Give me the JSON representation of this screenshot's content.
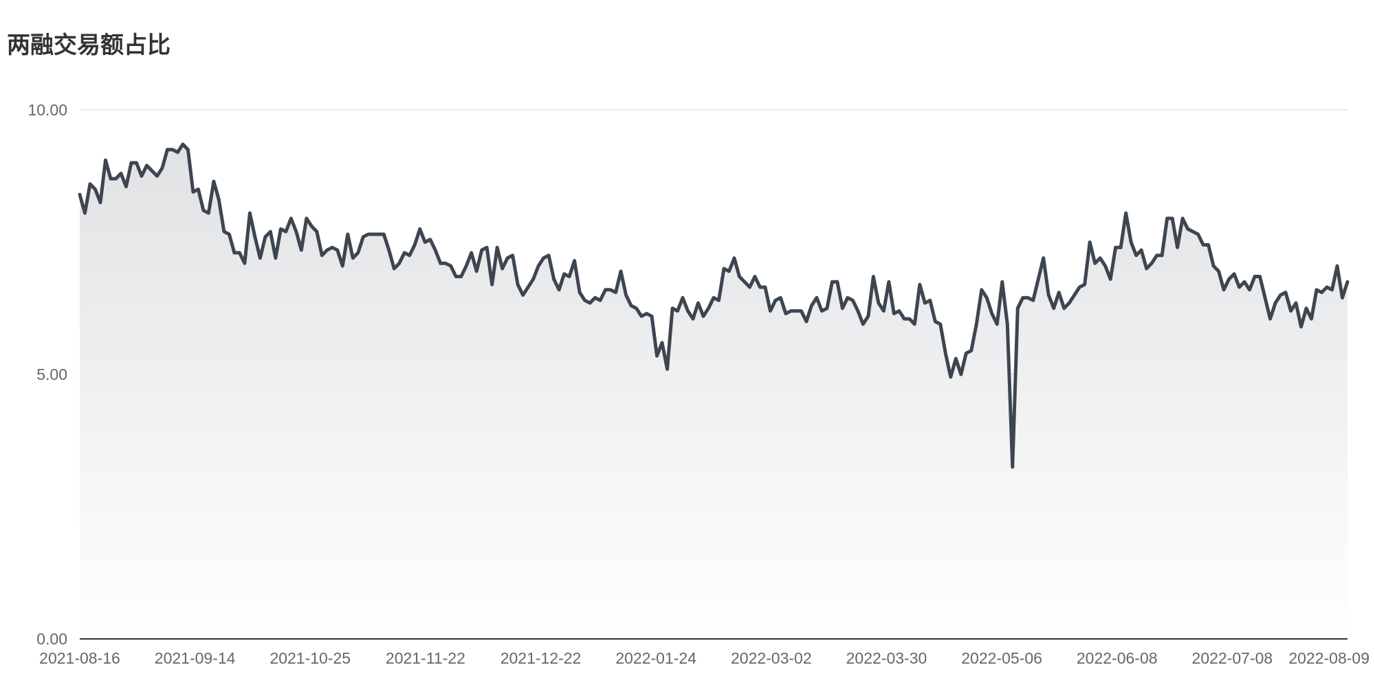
{
  "chart_data": {
    "type": "area",
    "title": "两融交易额占比",
    "ylim": [
      0,
      10
    ],
    "yticks": [
      "10.00",
      "5.00",
      "0.00"
    ],
    "xticks": [
      "2021-08-16",
      "2021-09-14",
      "2021-10-25",
      "2021-11-22",
      "2021-12-22",
      "2022-01-24",
      "2022-03-02",
      "2022-03-30",
      "2022-05-06",
      "2022-06-08",
      "2022-07-08",
      "2022-08-09"
    ],
    "grid": true,
    "legend": "none",
    "line_color": "#3d4650",
    "fill_color_top": "#e1e2e4",
    "fill_color_bottom": "#ffffff",
    "series": [
      {
        "values": [
          8.4,
          8.05,
          8.6,
          8.5,
          8.25,
          9.05,
          8.7,
          8.7,
          8.8,
          8.55,
          9.0,
          9.0,
          8.75,
          8.95,
          8.85,
          8.75,
          8.9,
          9.25,
          9.25,
          9.2,
          9.35,
          9.25,
          8.45,
          8.5,
          8.1,
          8.05,
          8.65,
          8.3,
          7.7,
          7.65,
          7.3,
          7.3,
          7.1,
          8.05,
          7.6,
          7.2,
          7.6,
          7.7,
          7.2,
          7.75,
          7.7,
          7.95,
          7.7,
          7.35,
          7.95,
          7.8,
          7.7,
          7.25,
          7.35,
          7.4,
          7.35,
          7.05,
          7.65,
          7.2,
          7.3,
          7.6,
          7.65,
          7.65,
          7.65,
          7.65,
          7.35,
          7.0,
          7.1,
          7.3,
          7.25,
          7.45,
          7.75,
          7.5,
          7.55,
          7.35,
          7.1,
          7.1,
          7.05,
          6.85,
          6.85,
          7.05,
          7.3,
          6.95,
          7.35,
          7.4,
          6.7,
          7.4,
          7.0,
          7.2,
          7.25,
          6.7,
          6.5,
          6.65,
          6.8,
          7.05,
          7.2,
          7.25,
          6.8,
          6.6,
          6.9,
          6.85,
          7.15,
          6.55,
          6.4,
          6.35,
          6.45,
          6.4,
          6.6,
          6.6,
          6.55,
          6.95,
          6.5,
          6.3,
          6.25,
          6.1,
          6.15,
          6.1,
          5.35,
          5.6,
          5.1,
          6.25,
          6.2,
          6.45,
          6.2,
          6.05,
          6.35,
          6.1,
          6.25,
          6.45,
          6.4,
          7.0,
          6.95,
          7.2,
          6.85,
          6.75,
          6.65,
          6.85,
          6.65,
          6.65,
          6.2,
          6.4,
          6.45,
          6.15,
          6.2,
          6.2,
          6.2,
          6.0,
          6.3,
          6.45,
          6.2,
          6.25,
          6.75,
          6.75,
          6.25,
          6.45,
          6.4,
          6.2,
          5.95,
          6.1,
          6.85,
          6.35,
          6.2,
          6.75,
          6.15,
          6.2,
          6.05,
          6.05,
          5.95,
          6.7,
          6.35,
          6.4,
          6.0,
          5.95,
          5.4,
          4.95,
          5.3,
          5.0,
          5.4,
          5.45,
          5.95,
          6.6,
          6.45,
          6.15,
          5.95,
          6.75,
          5.95,
          3.25,
          6.25,
          6.45,
          6.45,
          6.4,
          6.8,
          7.2,
          6.5,
          6.25,
          6.55,
          6.25,
          6.35,
          6.5,
          6.65,
          6.7,
          7.5,
          7.1,
          7.2,
          7.05,
          6.8,
          7.4,
          7.4,
          8.05,
          7.5,
          7.25,
          7.35,
          7.0,
          7.1,
          7.25,
          7.25,
          7.95,
          7.95,
          7.4,
          7.95,
          7.75,
          7.7,
          7.65,
          7.45,
          7.45,
          7.05,
          6.95,
          6.6,
          6.8,
          6.9,
          6.65,
          6.75,
          6.6,
          6.85,
          6.85,
          6.45,
          6.05,
          6.35,
          6.5,
          6.55,
          6.2,
          6.35,
          5.9,
          6.25,
          6.05,
          6.6,
          6.55,
          6.65,
          6.6,
          7.05,
          6.45,
          6.75
        ]
      }
    ]
  }
}
